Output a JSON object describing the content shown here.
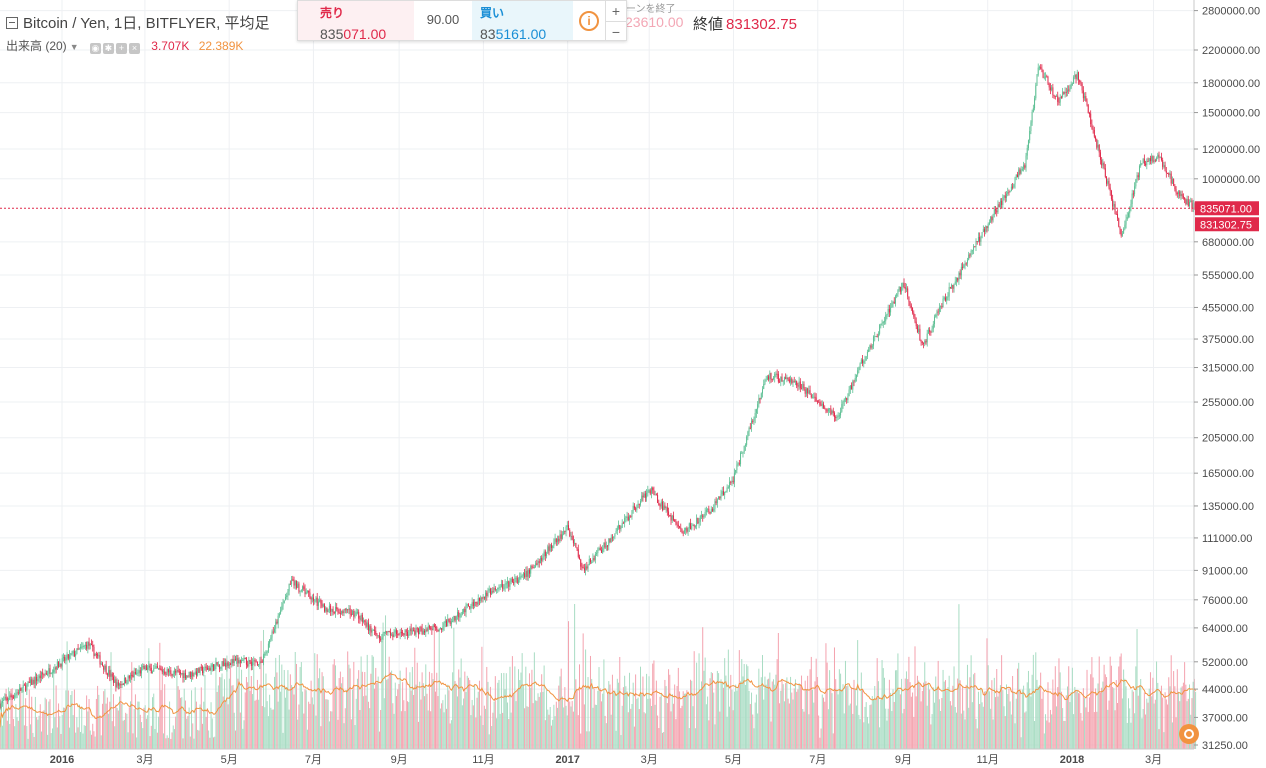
{
  "legend": {
    "title": "Bitcoin / Yen, 1日, BITFLYER, 平均足",
    "close_label": "終値",
    "close_value": "831302.75",
    "ghost_value": "23610.00",
    "ghost_label": "ーンを終了"
  },
  "volume_legend": {
    "label": "出来高 (20)",
    "value_a": "3.707K",
    "value_b": "22.389K"
  },
  "trade_panel": {
    "sell_label": "売り",
    "sell_price_prefix": "835",
    "sell_price_rest": "071.00",
    "spread": "90.00",
    "buy_label": "買い",
    "buy_price_prefix": "83",
    "buy_price_rest": "5161.00",
    "info_icon": "i",
    "plus": "+",
    "minus": "−"
  },
  "colors": {
    "up": "#5dbf94",
    "down": "#e0294a",
    "vol_up": "#a8dcc3",
    "vol_down": "#f4a2ae",
    "ma": "#f19340",
    "grid": "#eef0f3"
  },
  "chart_data": {
    "type": "candlestick",
    "price_scale": "log",
    "price_axis_ticks": [
      "2800000.00",
      "2200000.00",
      "1800000.00",
      "1500000.00",
      "1200000.00",
      "1000000.00",
      "680000.00",
      "555000.00",
      "455000.00",
      "375000.00",
      "315000.00",
      "255000.00",
      "205000.00",
      "165000.00",
      "135000.00",
      "111000.00",
      "91000.00",
      "76000.00",
      "64000.00",
      "52000.00",
      "44000.00",
      "37000.00",
      "31250.00"
    ],
    "time_axis_ticks": [
      "2016",
      "3月",
      "5月",
      "7月",
      "9月",
      "11月",
      "2017",
      "3月",
      "5月",
      "7月",
      "9月",
      "11月",
      "2018",
      "3月"
    ],
    "sell_price_tag": "835071.00",
    "last_close_tag": "831302.75",
    "sell_price": 835071,
    "last_close": 831302.75,
    "price_series": [
      [
        "2016-01-01",
        52000
      ],
      [
        "2016-01-20",
        58000
      ],
      [
        "2016-02-10",
        45000
      ],
      [
        "2016-03-01",
        50000
      ],
      [
        "2016-04-01",
        48000
      ],
      [
        "2016-05-01",
        52000
      ],
      [
        "2016-05-25",
        52000
      ],
      [
        "2016-06-15",
        85000
      ],
      [
        "2016-07-10",
        72000
      ],
      [
        "2016-08-01",
        70000
      ],
      [
        "2016-08-15",
        61000
      ],
      [
        "2016-09-01",
        62000
      ],
      [
        "2016-10-01",
        64000
      ],
      [
        "2016-11-01",
        78000
      ],
      [
        "2016-12-01",
        88000
      ],
      [
        "2017-01-01",
        118000
      ],
      [
        "2017-01-12",
        92000
      ],
      [
        "2017-02-01",
        110000
      ],
      [
        "2017-03-01",
        150000
      ],
      [
        "2017-03-25",
        115000
      ],
      [
        "2017-04-15",
        132000
      ],
      [
        "2017-05-01",
        160000
      ],
      [
        "2017-05-25",
        300000
      ],
      [
        "2017-06-15",
        290000
      ],
      [
        "2017-07-15",
        230000
      ],
      [
        "2017-08-01",
        320000
      ],
      [
        "2017-09-01",
        530000
      ],
      [
        "2017-09-15",
        360000
      ],
      [
        "2017-10-01",
        480000
      ],
      [
        "2017-11-01",
        760000
      ],
      [
        "2017-11-28",
        1100000
      ],
      [
        "2017-12-08",
        2000000
      ],
      [
        "2017-12-22",
        1600000
      ],
      [
        "2018-01-05",
        1900000
      ],
      [
        "2018-01-20",
        1200000
      ],
      [
        "2018-02-06",
        700000
      ],
      [
        "2018-02-20",
        1100000
      ],
      [
        "2018-03-05",
        1150000
      ],
      [
        "2018-03-20",
        900000
      ],
      [
        "2018-04-01",
        831302.75
      ]
    ]
  }
}
